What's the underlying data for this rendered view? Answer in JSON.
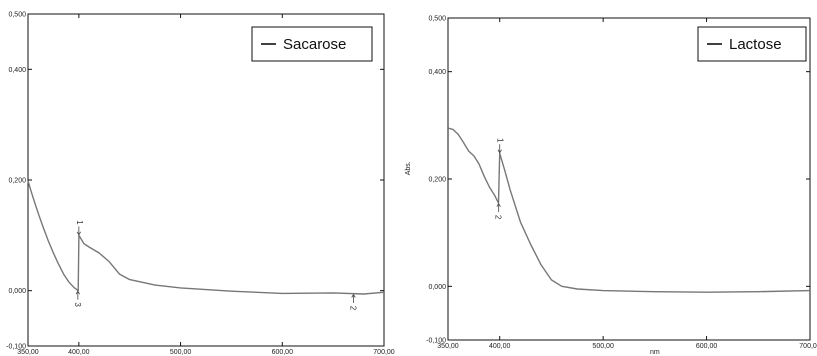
{
  "chart_data": [
    {
      "type": "line",
      "xlabel": "",
      "ylabel": "",
      "xlim": [
        350,
        700
      ],
      "ylim": [
        -0.1,
        0.5
      ],
      "x_ticks": [
        "350,00",
        "400,00",
        "500,00",
        "600,00",
        "700,00"
      ],
      "x_tick_values": [
        350,
        400,
        500,
        600,
        700
      ],
      "y_ticks": [
        "0,500",
        "0,400",
        "0,200",
        "0,000",
        "-0,100"
      ],
      "y_tick_values": [
        0.5,
        0.4,
        0.2,
        0.0,
        -0.1
      ],
      "legend": {
        "position": "top-right",
        "entries": [
          "Sacarose"
        ]
      },
      "line_color": "#777777",
      "series": [
        {
          "name": "Sacarose",
          "x": [
            350,
            355,
            360,
            365,
            370,
            375,
            380,
            385,
            390,
            395,
            399.4,
            400,
            405,
            410,
            420,
            430,
            440,
            450,
            475,
            500,
            550,
            600,
            650,
            680,
            700
          ],
          "y": [
            0.198,
            0.168,
            0.14,
            0.114,
            0.09,
            0.068,
            0.048,
            0.03,
            0.016,
            0.006,
            0.0,
            0.1,
            0.085,
            0.079,
            0.068,
            0.052,
            0.03,
            0.02,
            0.01,
            0.005,
            -0.001,
            -0.005,
            -0.004,
            -0.006,
            -0.003
          ]
        }
      ],
      "peak_labels": [
        {
          "text": "1",
          "x": 400,
          "y": 0.1,
          "direction": "down"
        },
        {
          "text": "3",
          "x": 399,
          "y": 0.0,
          "direction": "up"
        },
        {
          "text": "2",
          "x": 670,
          "y": -0.006,
          "direction": "up"
        }
      ]
    },
    {
      "type": "line",
      "xlabel": "nm",
      "ylabel": "Abs.",
      "xlim": [
        350,
        700
      ],
      "ylim": [
        -0.1,
        0.5
      ],
      "x_ticks": [
        "350,00",
        "400,00",
        "500,00",
        "600,00",
        "700,00"
      ],
      "x_tick_values": [
        350,
        400,
        500,
        600,
        700
      ],
      "y_ticks": [
        "0,500",
        "0,400",
        "0,200",
        "0,000",
        "-0,100"
      ],
      "y_tick_values": [
        0.5,
        0.4,
        0.2,
        0.0,
        -0.1
      ],
      "legend": {
        "position": "top-right",
        "entries": [
          "Lactose"
        ]
      },
      "line_color": "#777777",
      "series": [
        {
          "name": "Lactose",
          "x": [
            350,
            355,
            360,
            365,
            370,
            375,
            380,
            385,
            390,
            395,
            398.8,
            400,
            405,
            410,
            420,
            430,
            440,
            450,
            460,
            475,
            500,
            550,
            600,
            650,
            700
          ],
          "y": [
            0.295,
            0.292,
            0.283,
            0.268,
            0.252,
            0.243,
            0.228,
            0.205,
            0.185,
            0.17,
            0.155,
            0.248,
            0.215,
            0.18,
            0.12,
            0.078,
            0.04,
            0.012,
            0.0,
            -0.005,
            -0.008,
            -0.01,
            -0.011,
            -0.01,
            -0.008
          ]
        }
      ],
      "peak_labels": [
        {
          "text": "1",
          "x": 400,
          "y": 0.248,
          "direction": "down"
        },
        {
          "text": "2",
          "x": 399,
          "y": 0.155,
          "direction": "up"
        }
      ]
    }
  ]
}
